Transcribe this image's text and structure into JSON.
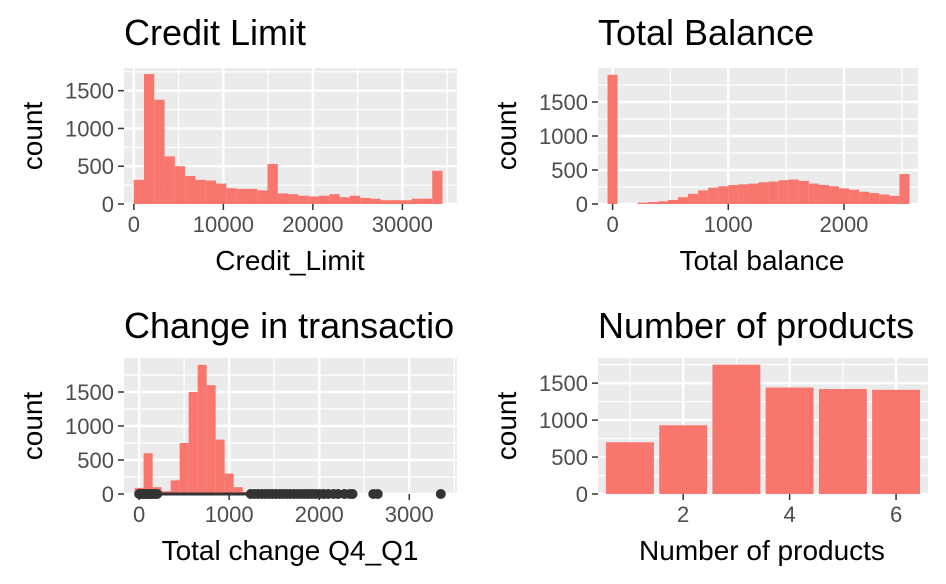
{
  "colors": {
    "bar_fill": "#f8766d",
    "panel_bg": "#ebebeb",
    "grid": "#ffffff",
    "tick_text": "#4d4d4d",
    "point": "#333333"
  },
  "chart_data": [
    {
      "type": "bar",
      "title": "Credit Limit",
      "xlabel": "Credit_Limit",
      "ylabel": "count",
      "xlim": [
        -1100,
        36100
      ],
      "ylim": [
        0,
        1800
      ],
      "x_ticks": [
        0,
        10000,
        20000,
        30000
      ],
      "x_tick_labels": [
        "0",
        "10000",
        "20000",
        "30000"
      ],
      "y_ticks": [
        0,
        500,
        1000,
        1500
      ],
      "y_tick_labels": [
        "0",
        "500",
        "1000",
        "1500"
      ],
      "bin_width": 1150,
      "bin_centers": [
        557,
        1707,
        2857,
        4007,
        5157,
        6307,
        7457,
        8607,
        9757,
        10907,
        12057,
        13207,
        14357,
        15507,
        16657,
        17807,
        18957,
        20107,
        21257,
        22407,
        23557,
        24707,
        25857,
        27007,
        28157,
        29307,
        30457,
        31607,
        32757,
        33907
      ],
      "values": [
        320,
        1720,
        1380,
        630,
        500,
        370,
        320,
        310,
        270,
        210,
        200,
        200,
        180,
        530,
        140,
        130,
        110,
        100,
        110,
        130,
        90,
        110,
        80,
        70,
        50,
        50,
        50,
        70,
        70,
        440
      ]
    },
    {
      "type": "bar",
      "title": "Total Balance",
      "xlabel": "Total balance",
      "ylabel": "count",
      "xlim": [
        -126,
        2640
      ],
      "ylim": [
        0,
        2000
      ],
      "x_ticks": [
        0,
        1000,
        2000
      ],
      "x_tick_labels": [
        "0",
        "1000",
        "2000"
      ],
      "y_ticks": [
        0,
        500,
        1000,
        1500
      ],
      "y_tick_labels": [
        "0",
        "500",
        "1000",
        "1500"
      ],
      "bin_width": 87,
      "bin_centers": [
        0,
        87,
        174,
        261,
        348,
        435,
        522,
        609,
        696,
        783,
        870,
        957,
        1044,
        1131,
        1218,
        1305,
        1392,
        1479,
        1566,
        1653,
        1740,
        1827,
        1914,
        2001,
        2088,
        2175,
        2262,
        2349,
        2436,
        2523
      ],
      "values": [
        1900,
        0,
        0,
        20,
        30,
        40,
        60,
        100,
        150,
        200,
        240,
        260,
        280,
        290,
        300,
        320,
        330,
        350,
        360,
        340,
        300,
        280,
        260,
        230,
        210,
        180,
        160,
        140,
        120,
        440
      ]
    },
    {
      "type": "bar",
      "title": "Change in transactio",
      "xlabel": "Total change Q4_Q1",
      "ylabel": "count",
      "xlim": [
        -168,
        3530
      ],
      "ylim": [
        0,
        2000
      ],
      "x_ticks": [
        0,
        1000,
        2000,
        3000
      ],
      "x_tick_labels": [
        "0",
        "1000",
        "2000",
        "3000"
      ],
      "y_ticks": [
        0,
        500,
        1000,
        1500
      ],
      "y_tick_labels": [
        "0",
        "500",
        "1000",
        "1500"
      ],
      "bin_width": 100,
      "bin_centers": [
        0,
        100,
        200,
        300,
        400,
        500,
        600,
        700,
        800,
        900,
        1000,
        1100,
        1200
      ],
      "values": [
        90,
        600,
        100,
        40,
        200,
        750,
        1500,
        1900,
        1600,
        800,
        300,
        100,
        30
      ],
      "boxplot": {
        "whisker_low": 0,
        "whisker_high": 1230,
        "outliers": [
          0,
          20,
          40,
          60,
          80,
          100,
          120,
          140,
          160,
          180,
          200,
          1240,
          1280,
          1320,
          1360,
          1400,
          1440,
          1480,
          1520,
          1560,
          1600,
          1640,
          1680,
          1720,
          1760,
          1800,
          1840,
          1880,
          1920,
          1960,
          2000,
          2050,
          2100,
          2160,
          2210,
          2280,
          2340,
          2370,
          2600,
          2650,
          3350
        ]
      }
    },
    {
      "type": "bar",
      "title": "Number of products",
      "xlabel": "Number of products",
      "ylabel": "count",
      "xlim": [
        0.4,
        6.6
      ],
      "ylim": [
        0,
        1840
      ],
      "x_ticks": [
        2,
        4,
        6
      ],
      "x_tick_labels": [
        "2",
        "4",
        "6"
      ],
      "y_ticks": [
        0,
        500,
        1000,
        1500
      ],
      "y_tick_labels": [
        "0",
        "500",
        "1000",
        "1500"
      ],
      "categories": [
        1,
        2,
        3,
        4,
        5,
        6
      ],
      "values": [
        700,
        930,
        1750,
        1440,
        1420,
        1410
      ]
    }
  ]
}
